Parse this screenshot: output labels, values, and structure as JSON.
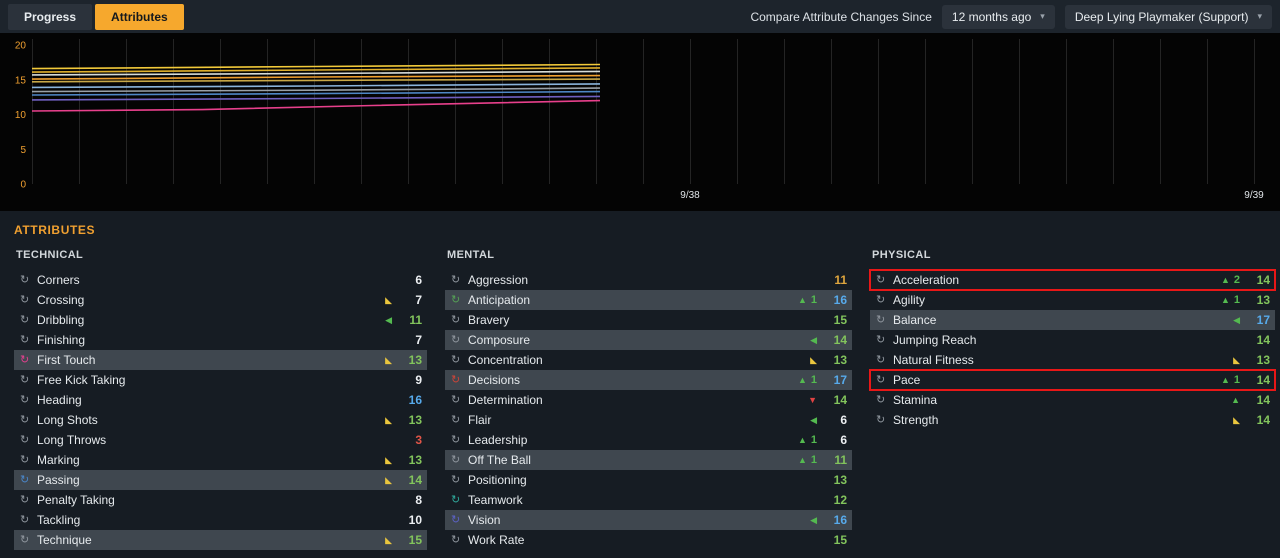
{
  "topbar": {
    "tabs": [
      {
        "label": "Progress",
        "active": true
      },
      {
        "label": "Attributes",
        "active": false
      }
    ],
    "compare_label": "Compare Attribute Changes Since",
    "compare_dropdown": "12 months ago",
    "role_dropdown": "Deep Lying Playmaker (Support)"
  },
  "chart_data": {
    "type": "line",
    "title": "",
    "ylim": [
      0,
      20
    ],
    "y_ticks": [
      0,
      5,
      10,
      15,
      20
    ],
    "x_tick_labels": [
      "9/38",
      "9/39"
    ],
    "grid": "vertical-monthly",
    "legend": "none",
    "series": [
      {
        "name": "yellow-line-1",
        "color": "#f2ca3a",
        "points": [
          [
            0,
            16.6
          ],
          [
            0.5,
            16.9
          ],
          [
            1,
            17.2
          ]
        ]
      },
      {
        "name": "amber-line",
        "color": "#e0b02c",
        "points": [
          [
            0,
            16.1
          ],
          [
            0.5,
            16.4
          ],
          [
            1,
            16.7
          ]
        ]
      },
      {
        "name": "white-line",
        "color": "#d8dcd8",
        "points": [
          [
            0,
            15.7
          ],
          [
            0.5,
            15.9
          ],
          [
            1,
            16.2
          ]
        ]
      },
      {
        "name": "orange-line",
        "color": "#f0a030",
        "points": [
          [
            0,
            15.1
          ],
          [
            0.5,
            15.4
          ],
          [
            1,
            15.6
          ]
        ]
      },
      {
        "name": "khaki-line",
        "color": "#c8a848",
        "points": [
          [
            0,
            14.7
          ],
          [
            0.5,
            14.9
          ],
          [
            1,
            15.1
          ]
        ]
      },
      {
        "name": "lightblue-line",
        "color": "#8ab4dc",
        "points": [
          [
            0,
            13.9
          ],
          [
            0.5,
            14.1
          ],
          [
            1,
            14.4
          ]
        ]
      },
      {
        "name": "gray-line",
        "color": "#98a0a8",
        "points": [
          [
            0,
            13.3
          ],
          [
            0.5,
            13.5
          ],
          [
            1,
            13.8
          ]
        ]
      },
      {
        "name": "blue-line",
        "color": "#4f87c6",
        "points": [
          [
            0,
            12.8
          ],
          [
            0.5,
            13.0
          ],
          [
            1,
            13.3
          ]
        ]
      },
      {
        "name": "purple-line",
        "color": "#7060c0",
        "points": [
          [
            0,
            12.1
          ],
          [
            0.5,
            12.3
          ],
          [
            1,
            12.6
          ]
        ]
      },
      {
        "name": "pink-line",
        "color": "#e8408c",
        "points": [
          [
            0,
            10.5
          ],
          [
            0.3,
            10.7
          ],
          [
            0.6,
            11.3
          ],
          [
            1,
            12.0
          ]
        ]
      }
    ]
  },
  "attributes": {
    "section_title": "ATTRIBUTES",
    "columns": [
      {
        "title": "TECHNICAL",
        "rows": [
          {
            "name": "Corners",
            "value": 6,
            "vclass": "white"
          },
          {
            "name": "Crossing",
            "value": 7,
            "vclass": "white",
            "change": {
              "dir": "dip"
            }
          },
          {
            "name": "Dribbling",
            "value": 11,
            "vclass": "green",
            "change": {
              "dir": "left"
            }
          },
          {
            "name": "Finishing",
            "value": 7,
            "vclass": "white"
          },
          {
            "name": "First Touch",
            "value": 13,
            "vclass": "green",
            "change": {
              "dir": "dip"
            },
            "hl": true,
            "icon": "#e2408e"
          },
          {
            "name": "Free Kick Taking",
            "value": 9,
            "vclass": "white"
          },
          {
            "name": "Heading",
            "value": 16,
            "vclass": "blue"
          },
          {
            "name": "Long Shots",
            "value": 13,
            "vclass": "green",
            "change": {
              "dir": "dip"
            }
          },
          {
            "name": "Long Throws",
            "value": 3,
            "vclass": "red"
          },
          {
            "name": "Marking",
            "value": 13,
            "vclass": "green",
            "change": {
              "dir": "dip"
            }
          },
          {
            "name": "Passing",
            "value": 14,
            "vclass": "green",
            "change": {
              "dir": "dip"
            },
            "hl": true,
            "icon": "#4a86c8"
          },
          {
            "name": "Penalty Taking",
            "value": 8,
            "vclass": "white"
          },
          {
            "name": "Tackling",
            "value": 10,
            "vclass": "white"
          },
          {
            "name": "Technique",
            "value": 15,
            "vclass": "green",
            "change": {
              "dir": "dip"
            },
            "hl": true
          }
        ]
      },
      {
        "title": "MENTAL",
        "rows": [
          {
            "name": "Aggression",
            "value": 11,
            "vclass": "amber"
          },
          {
            "name": "Anticipation",
            "value": 16,
            "vclass": "blue",
            "change": {
              "dir": "up",
              "amount": 1
            },
            "hl": true,
            "icon": "#55a055"
          },
          {
            "name": "Bravery",
            "value": 15,
            "vclass": "green"
          },
          {
            "name": "Composure",
            "value": 14,
            "vclass": "green",
            "change": {
              "dir": "left"
            },
            "hl": true
          },
          {
            "name": "Concentration",
            "value": 13,
            "vclass": "green",
            "change": {
              "dir": "dip"
            }
          },
          {
            "name": "Decisions",
            "value": 17,
            "vclass": "blue",
            "change": {
              "dir": "up",
              "amount": 1
            },
            "hl": true,
            "icon": "#cc4438"
          },
          {
            "name": "Determination",
            "value": 14,
            "vclass": "green",
            "change": {
              "dir": "down"
            }
          },
          {
            "name": "Flair",
            "value": 6,
            "vclass": "white",
            "change": {
              "dir": "left"
            }
          },
          {
            "name": "Leadership",
            "value": 6,
            "vclass": "white",
            "change": {
              "dir": "up",
              "amount": 1
            }
          },
          {
            "name": "Off The Ball",
            "value": 11,
            "vclass": "green",
            "change": {
              "dir": "up",
              "amount": 1
            },
            "hl": true
          },
          {
            "name": "Positioning",
            "value": 13,
            "vclass": "green"
          },
          {
            "name": "Teamwork",
            "value": 12,
            "vclass": "green",
            "icon": "#2fa89a"
          },
          {
            "name": "Vision",
            "value": 16,
            "vclass": "blue",
            "change": {
              "dir": "left"
            },
            "hl": true,
            "icon": "#5b62c4"
          },
          {
            "name": "Work Rate",
            "value": 15,
            "vclass": "green"
          }
        ]
      },
      {
        "title": "PHYSICAL",
        "rows": [
          {
            "name": "Acceleration",
            "value": 14,
            "vclass": "green",
            "change": {
              "dir": "up",
              "amount": 2
            },
            "annotated": true
          },
          {
            "name": "Agility",
            "value": 13,
            "vclass": "green",
            "change": {
              "dir": "up",
              "amount": 1
            }
          },
          {
            "name": "Balance",
            "value": 17,
            "vclass": "blue",
            "change": {
              "dir": "left"
            },
            "hl": true
          },
          {
            "name": "Jumping Reach",
            "value": 14,
            "vclass": "green"
          },
          {
            "name": "Natural Fitness",
            "value": 13,
            "vclass": "green",
            "change": {
              "dir": "dip"
            }
          },
          {
            "name": "Pace",
            "value": 14,
            "vclass": "green",
            "change": {
              "dir": "up",
              "amount": 1
            },
            "annotated": true
          },
          {
            "name": "Stamina",
            "value": 14,
            "vclass": "green",
            "change": {
              "dir": "up"
            }
          },
          {
            "name": "Strength",
            "value": 14,
            "vclass": "green",
            "change": {
              "dir": "dip"
            }
          }
        ]
      }
    ]
  },
  "glyphs": {
    "attr_icon": "↻",
    "chevron": "▾",
    "up": "▲",
    "down": "▼",
    "left": "◀",
    "dip": "◣"
  },
  "colors": {
    "accent_orange": "#f0a030",
    "tab_orange": "#f6a82d",
    "change_green": "#54ba50",
    "change_yellow": "#eac63e",
    "change_red": "#e04343",
    "value_red": "#e05548",
    "value_white": "#eceff2",
    "value_green": "#82c45c",
    "value_blue": "#57aaeb",
    "value_amber": "#dfa63e",
    "highlight_row": "#3f474f",
    "annotation_red": "#e81717"
  }
}
